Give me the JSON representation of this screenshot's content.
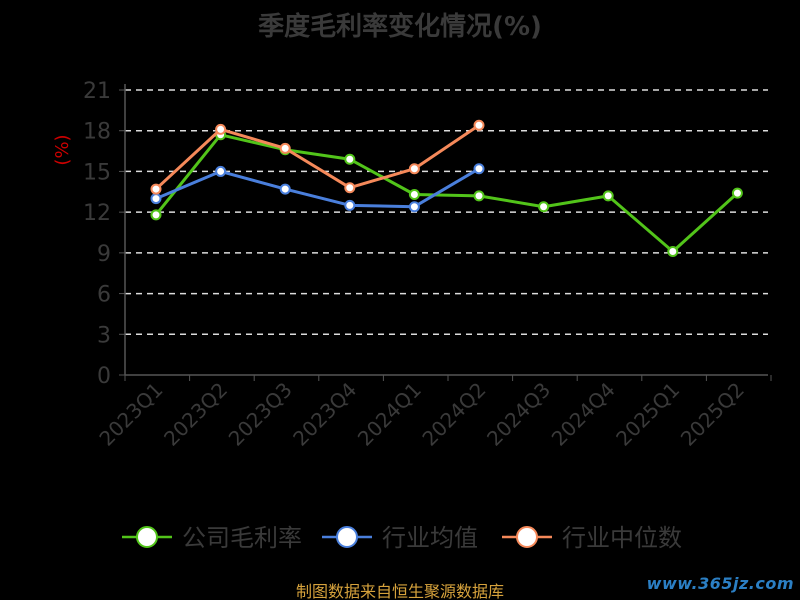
{
  "title": "季度毛利率变化情况(%)",
  "source_note": "制图数据来自恒生聚源数据库",
  "watermark": "www.365jz.com",
  "colors": {
    "background": "#000000",
    "axis": "#555555",
    "grid": "#dddddd",
    "tick_label": "#3a3a3a",
    "ylabel": "#cc0000",
    "legend_text": "#3a3a3a"
  },
  "chart_data": {
    "type": "line",
    "title": "季度毛利率变化情况(%)",
    "ylabel": "(%)",
    "xlabel": "",
    "ylim": [
      0,
      21
    ],
    "yticks": [
      0,
      3,
      6,
      9,
      12,
      15,
      18,
      21
    ],
    "grid": true,
    "legend_position": "bottom",
    "categories": [
      "2023Q1",
      "2023Q2",
      "2023Q3",
      "2023Q4",
      "2024Q1",
      "2024Q2",
      "2024Q3",
      "2024Q4",
      "2025Q1",
      "2025Q2"
    ],
    "series": [
      {
        "name": "公司毛利率",
        "color": "#52c41a",
        "values": [
          11.8,
          17.7,
          16.6,
          15.9,
          13.3,
          13.2,
          12.4,
          13.2,
          9.1,
          13.4
        ]
      },
      {
        "name": "行业均值",
        "color": "#4a7fdc",
        "values": [
          13.0,
          15.0,
          13.7,
          12.5,
          12.4,
          15.2,
          null,
          null,
          null,
          null
        ]
      },
      {
        "name": "行业中位数",
        "color": "#f5895a",
        "values": [
          13.7,
          18.1,
          16.7,
          13.8,
          15.2,
          18.4,
          null,
          null,
          null,
          null
        ]
      }
    ]
  }
}
